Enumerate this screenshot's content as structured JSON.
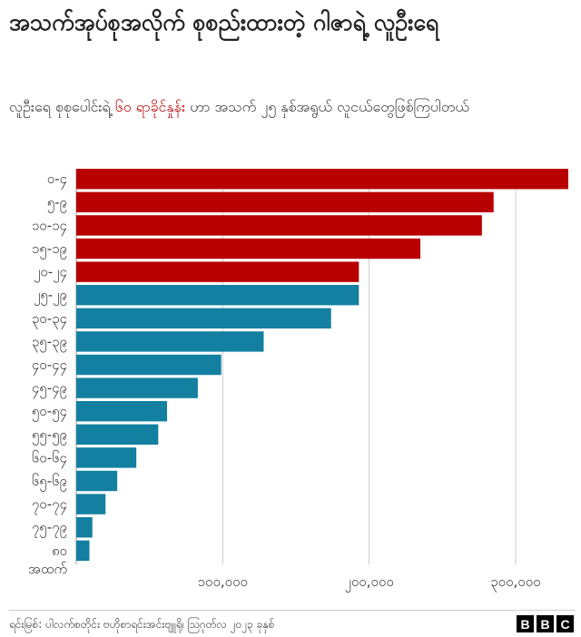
{
  "title": "အသက်အုပ်စုအလိုက် စုစည်းထားတဲ့ ဂါဇာရဲ့ လူဦးရေ",
  "subtitle": {
    "before": "လူဦးရေ စုစုပေါင်းရဲ့ ",
    "highlight": "၆၀ ရာခိုင်နှုန်း",
    "after": " ဟာ အသက် ၂၅ နှစ်အရွယ် လူငယ်တွေဖြစ်ကြပါတယ်"
  },
  "colors": {
    "young": "#b80000",
    "adult": "#1380a1",
    "grid": "#cccccc"
  },
  "chart_data": {
    "type": "bar",
    "orientation": "horizontal",
    "categories": [
      "၀-၄",
      "၅-၉",
      "၁၀-၁၄",
      "၁၅-၁၉",
      "၂၀-၂၄",
      "၂၅-၂၉",
      "၃၀-၃၄",
      "၃၅-၃၉",
      "၄၀-၄၄",
      "၄၅-၄၉",
      "၅၀-၅၄",
      "၅၅-၅၉",
      "၆၀-၆၄",
      "၆၅-၆၉",
      "၇၀-၇၄",
      "၇၅-၇၉",
      "၈၀ အထက်"
    ],
    "values": [
      336000,
      285000,
      277000,
      235000,
      193000,
      193000,
      174000,
      128000,
      99000,
      83000,
      62000,
      56000,
      41000,
      28000,
      20000,
      11000,
      9000
    ],
    "highlight_count": 5,
    "xlim": [
      0,
      336000
    ],
    "xticks": [
      100000,
      200000,
      300000
    ],
    "xtick_labels": [
      "၁၀၀,၀၀၀",
      "၂၀၀,၀၀၀",
      "၃၀၀,၀၀၀"
    ],
    "xlabel": "",
    "ylabel": "",
    "grid": true
  },
  "footer": {
    "source": "ရင်းမြစ်: ပါလက်စတိုင်း ဗဟိုစာရင်းအင်းဗျူရို၊ သြဂုတ်လ ၂၀၂၃ ခုနှစ်",
    "logo": [
      "B",
      "B",
      "C"
    ]
  }
}
